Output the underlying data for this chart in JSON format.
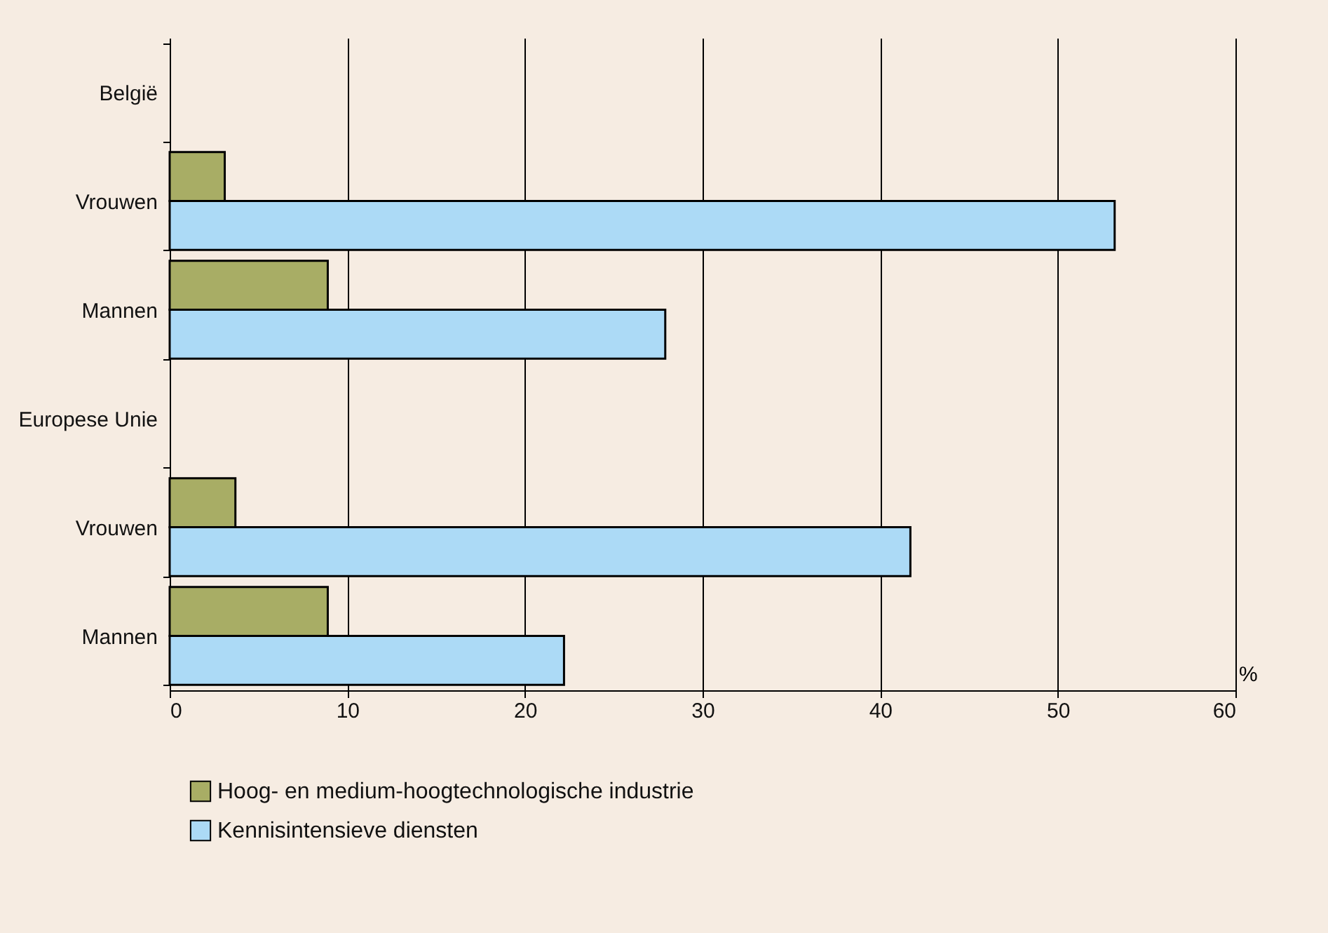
{
  "chart_data": {
    "type": "bar",
    "orientation": "horizontal",
    "xlabel": "%",
    "categories": [
      "België",
      "Vrouwen",
      "Mannen",
      "Europese Unie",
      "Vrouwen",
      "Mannen"
    ],
    "series": [
      {
        "name": "Hoog- en medium-hoogtechnologische industrie",
        "color": "#a8ad65",
        "values": [
          null,
          3.1,
          8.9,
          null,
          3.7,
          8.9
        ]
      },
      {
        "name": "Kennisintensieve diensten",
        "color": "#acdaf6",
        "values": [
          null,
          53.2,
          27.9,
          null,
          41.7,
          22.2
        ]
      }
    ],
    "xlim": [
      0,
      60
    ],
    "xticks": [
      0,
      10,
      20,
      30,
      40,
      50,
      60
    ],
    "grid": "x",
    "legend": "bottom"
  }
}
